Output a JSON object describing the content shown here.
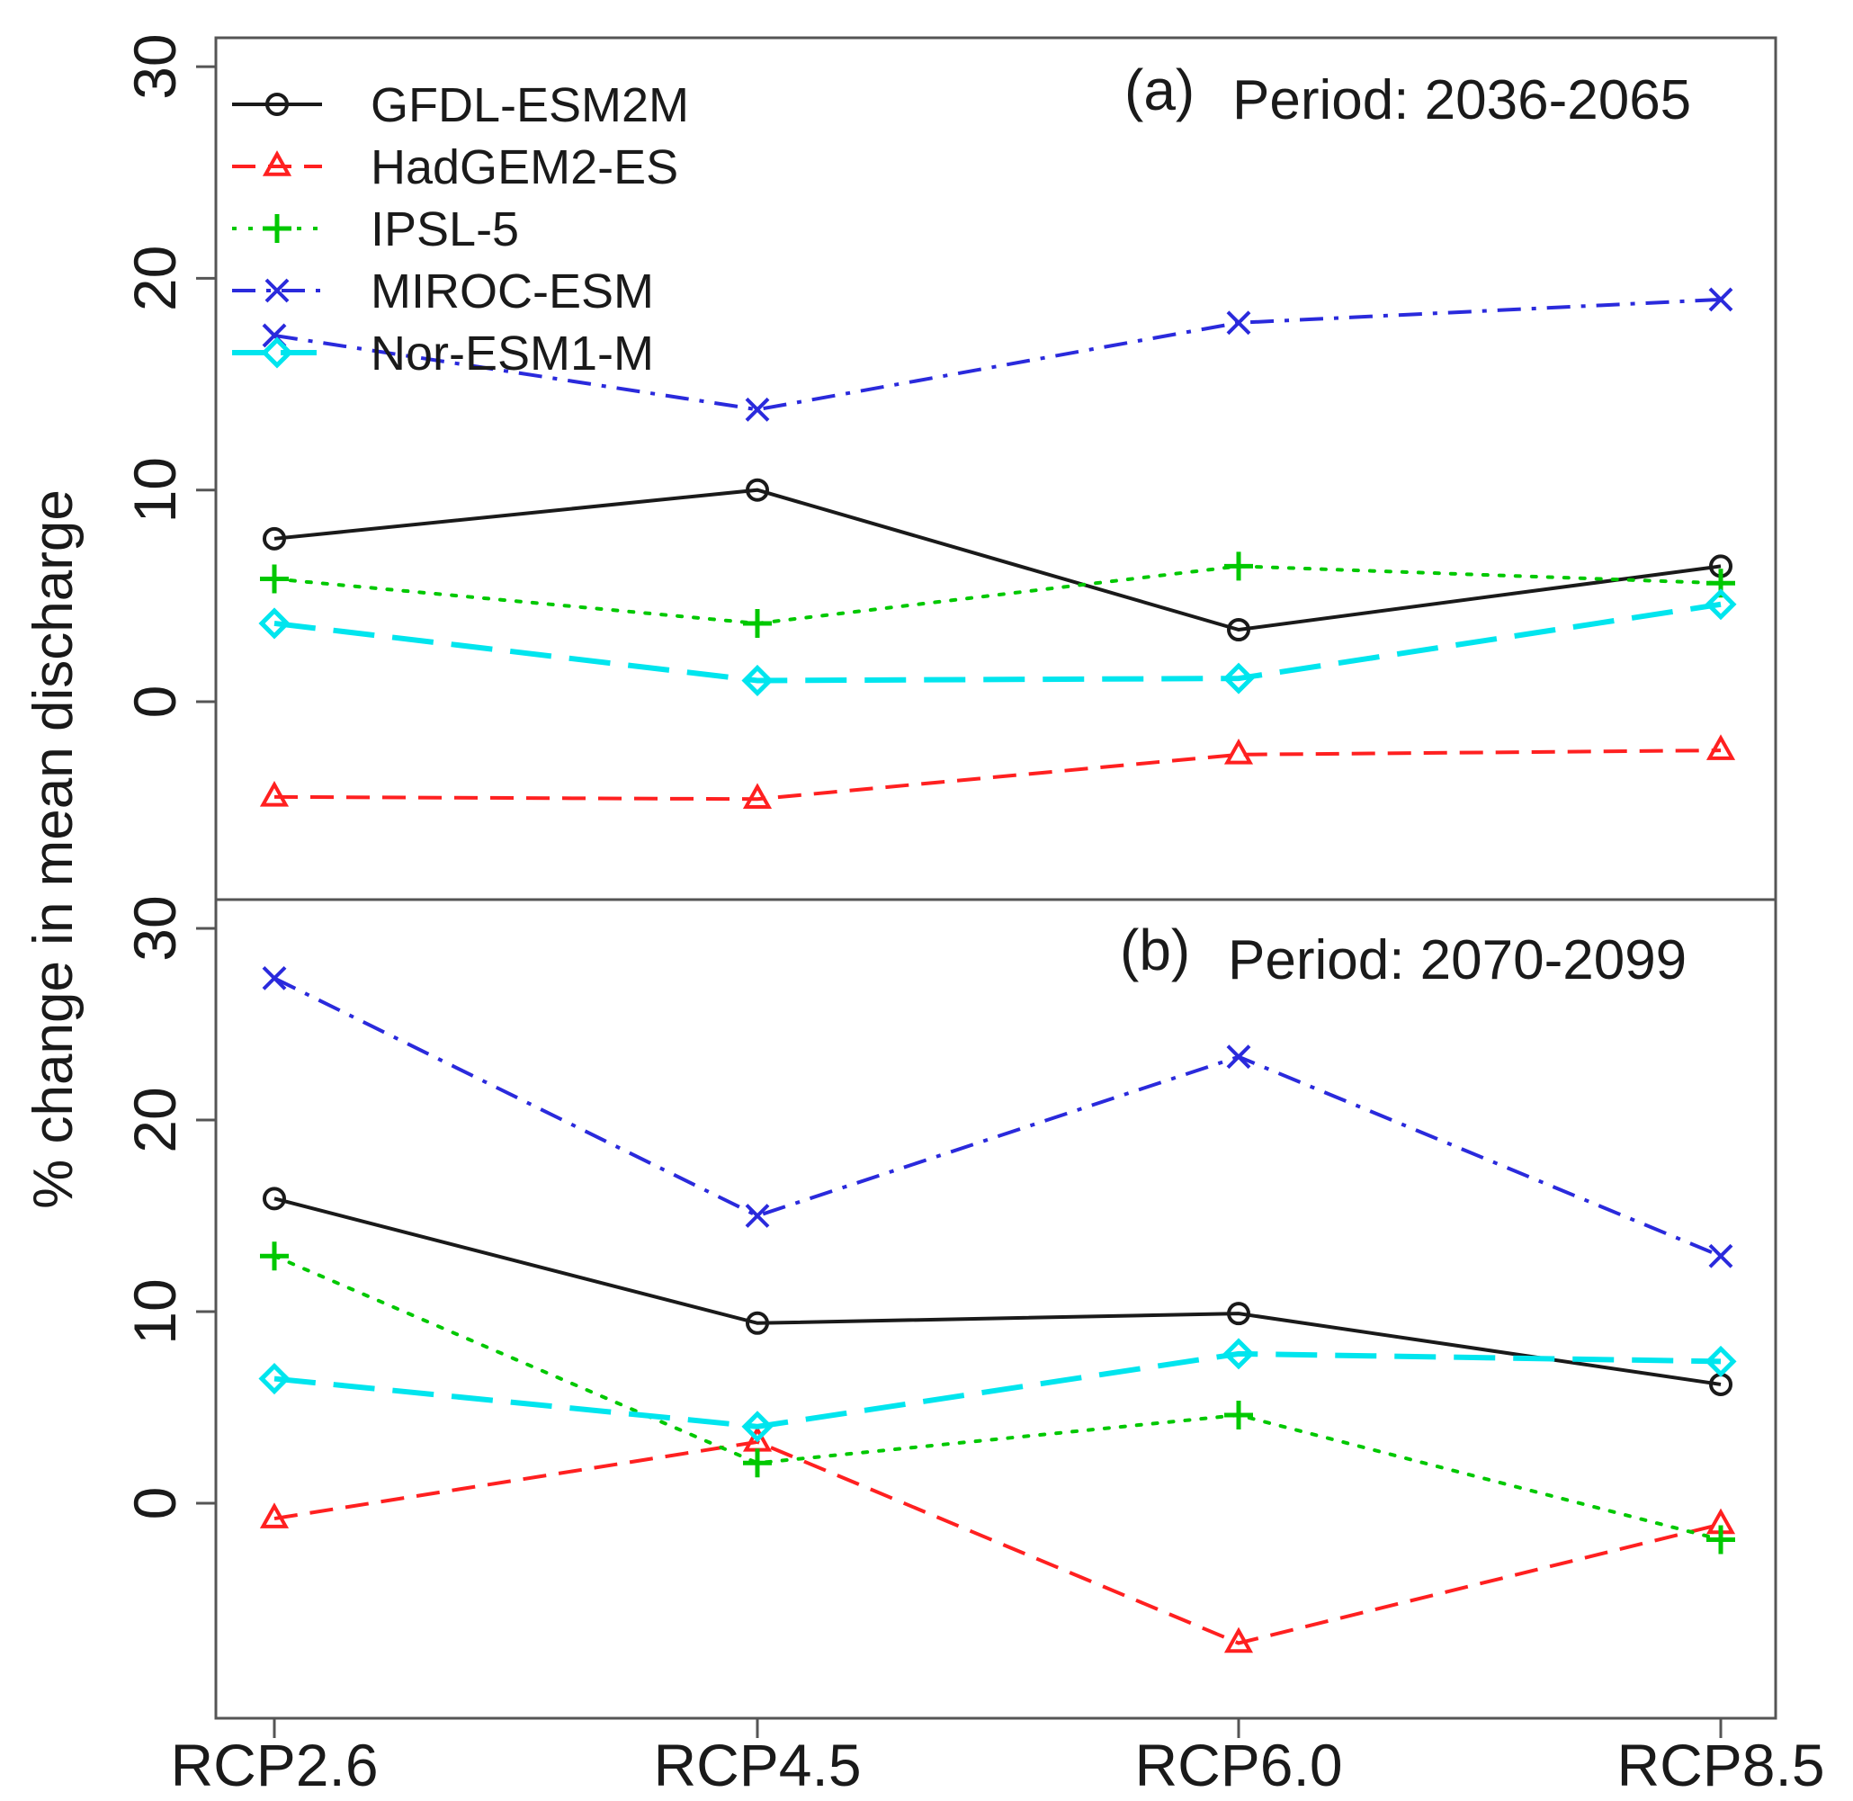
{
  "chart_data": {
    "type": "line",
    "ylabel": "% change in mean discharge",
    "categories": [
      "RCP2.6",
      "RCP4.5",
      "RCP6.0",
      "RCP8.5"
    ],
    "legend": {
      "placement": "top-left",
      "entries": [
        "GFDL-ESM2M",
        "HadGEM2-ES",
        "IPSL-5",
        "MIROC-ESM",
        "Nor-ESM1-M"
      ]
    },
    "series_styles": [
      {
        "name": "GFDL-ESM2M",
        "color": "#1a1a1a",
        "marker": "circle",
        "dash": "solid"
      },
      {
        "name": "HadGEM2-ES",
        "color": "#ff2020",
        "marker": "triangle",
        "dash": "dashed"
      },
      {
        "name": "IPSL-5",
        "color": "#00c800",
        "marker": "plus",
        "dash": "dotted"
      },
      {
        "name": "MIROC-ESM",
        "color": "#2a2adc",
        "marker": "cross",
        "dash": "dashdot"
      },
      {
        "name": "Nor-ESM1-M",
        "color": "#00e5ee",
        "marker": "diamond",
        "dash": "longdash"
      }
    ],
    "panels": [
      {
        "letter": "(a)",
        "period": "Period: 2036-2065",
        "ylim": [
          -9.5,
          30.5
        ],
        "yticks": [
          "0",
          "10",
          "20",
          "30"
        ],
        "series": [
          {
            "name": "GFDL-ESM2M",
            "values": [
              7.7,
              10.0,
              3.4,
              6.4
            ]
          },
          {
            "name": "HadGEM2-ES",
            "values": [
              -4.5,
              -4.6,
              -2.5,
              -2.3
            ]
          },
          {
            "name": "IPSL-5",
            "values": [
              5.8,
              3.7,
              6.4,
              5.6
            ]
          },
          {
            "name": "MIROC-ESM",
            "values": [
              17.3,
              13.8,
              17.9,
              19.0
            ]
          },
          {
            "name": "Nor-ESM1-M",
            "values": [
              3.7,
              1.0,
              1.1,
              4.6
            ]
          }
        ]
      },
      {
        "letter": "(b)",
        "period": "Period: 2070-2099",
        "ylim": [
          -9.5,
          30.5
        ],
        "yticks": [
          "0",
          "10",
          "20",
          "30"
        ],
        "series": [
          {
            "name": "GFDL-ESM2M",
            "values": [
              15.9,
              9.4,
              9.9,
              6.2
            ]
          },
          {
            "name": "HadGEM2-ES",
            "values": [
              -0.8,
              3.2,
              -7.3,
              -1.1
            ]
          },
          {
            "name": "IPSL-5",
            "values": [
              12.9,
              2.1,
              4.6,
              -1.9
            ]
          },
          {
            "name": "MIROC-ESM",
            "values": [
              27.4,
              15.0,
              23.3,
              12.9
            ]
          },
          {
            "name": "Nor-ESM1-M",
            "values": [
              6.5,
              4.0,
              7.8,
              7.4
            ]
          }
        ]
      }
    ]
  }
}
